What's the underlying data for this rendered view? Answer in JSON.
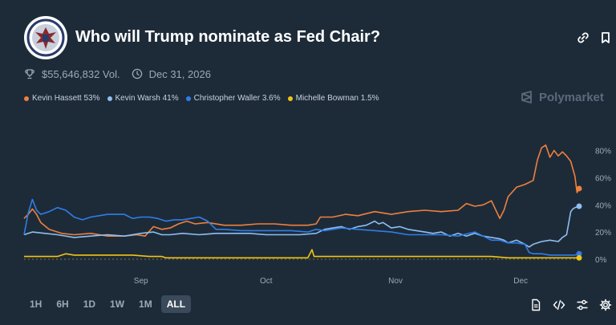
{
  "header": {
    "title": "Who will Trump nominate as Fed Chair?",
    "volume": "$55,646,832 Vol.",
    "end_date": "Dec 31, 2026"
  },
  "brand": {
    "name": "Polymarket"
  },
  "icons": {
    "link": "link-icon",
    "bookmark": "bookmark-icon",
    "trophy": "trophy-icon",
    "clock": "clock-icon",
    "seal": "federal-reserve-seal",
    "brand": "polymarket-logo-icon"
  },
  "legend": [
    {
      "label": "Kevin Hassett 53%",
      "color": "#f0803c"
    },
    {
      "label": "Kevin Warsh 41%",
      "color": "#8fbef0"
    },
    {
      "label": "Christopher Waller 3.6%",
      "color": "#2f7ee8"
    },
    {
      "label": "Michelle Bowman 1.5%",
      "color": "#f2c318"
    }
  ],
  "time_ranges": [
    "1H",
    "6H",
    "1D",
    "1W",
    "1M",
    "ALL"
  ],
  "active_range": "ALL",
  "tools": [
    "document-icon",
    "embed-code-icon",
    "sliders-icon",
    "settings-gear-icon"
  ],
  "chart_data": {
    "type": "line",
    "y_ticks": [
      "0%",
      "20%",
      "40%",
      "60%",
      "80%"
    ],
    "x_ticks": [
      "Sep",
      "Oct",
      "Nov",
      "Dec"
    ],
    "ylim": [
      0,
      88
    ],
    "y_unit": "%",
    "x_unit": "day (0 = Aug 4)",
    "x_tick_positions": [
      28,
      58,
      89,
      119
    ],
    "xlim": [
      0,
      133
    ],
    "grid": false,
    "legend_position": "top-left",
    "series": [
      {
        "name": "Kevin Hassett",
        "color": "#f0803c",
        "points": [
          [
            0,
            30
          ],
          [
            1,
            33
          ],
          [
            2,
            37
          ],
          [
            3,
            33
          ],
          [
            4,
            27
          ],
          [
            6,
            22
          ],
          [
            9,
            19
          ],
          [
            12,
            18
          ],
          [
            16,
            19
          ],
          [
            20,
            17
          ],
          [
            24,
            17
          ],
          [
            27,
            18
          ],
          [
            29,
            17
          ],
          [
            31,
            24
          ],
          [
            33,
            22
          ],
          [
            35,
            23
          ],
          [
            37,
            26
          ],
          [
            39,
            28
          ],
          [
            41,
            26
          ],
          [
            44,
            27
          ],
          [
            48,
            25
          ],
          [
            52,
            25
          ],
          [
            56,
            26
          ],
          [
            60,
            26
          ],
          [
            64,
            25
          ],
          [
            68,
            25
          ],
          [
            70,
            26
          ],
          [
            71,
            31
          ],
          [
            74,
            31
          ],
          [
            77,
            33
          ],
          [
            80,
            32
          ],
          [
            84,
            35
          ],
          [
            88,
            33
          ],
          [
            92,
            35
          ],
          [
            96,
            36
          ],
          [
            100,
            35
          ],
          [
            104,
            36
          ],
          [
            106,
            41
          ],
          [
            108,
            39
          ],
          [
            110,
            40
          ],
          [
            112,
            43
          ],
          [
            114,
            30
          ],
          [
            115,
            36
          ],
          [
            116,
            46
          ],
          [
            118,
            53
          ],
          [
            120,
            55
          ],
          [
            122,
            58
          ],
          [
            123,
            73
          ],
          [
            124,
            82
          ],
          [
            125,
            84
          ],
          [
            126,
            75
          ],
          [
            127,
            80
          ],
          [
            128,
            76
          ],
          [
            129,
            79
          ],
          [
            130,
            76
          ],
          [
            131,
            72
          ],
          [
            132,
            61
          ],
          [
            132.5,
            49
          ],
          [
            133,
            52
          ]
        ]
      },
      {
        "name": "Kevin Warsh",
        "color": "#8fbef0",
        "points": [
          [
            0,
            18
          ],
          [
            2,
            20
          ],
          [
            5,
            19
          ],
          [
            8,
            18
          ],
          [
            12,
            16
          ],
          [
            16,
            17
          ],
          [
            20,
            18
          ],
          [
            24,
            17
          ],
          [
            28,
            19
          ],
          [
            31,
            20
          ],
          [
            33,
            18
          ],
          [
            35,
            18
          ],
          [
            38,
            19
          ],
          [
            42,
            18
          ],
          [
            46,
            19
          ],
          [
            50,
            19
          ],
          [
            54,
            19
          ],
          [
            58,
            18
          ],
          [
            62,
            18
          ],
          [
            66,
            18
          ],
          [
            70,
            19
          ],
          [
            72,
            22
          ],
          [
            74,
            23
          ],
          [
            76,
            24
          ],
          [
            78,
            22
          ],
          [
            80,
            24
          ],
          [
            82,
            25
          ],
          [
            84,
            28
          ],
          [
            85,
            26
          ],
          [
            86,
            27
          ],
          [
            88,
            23
          ],
          [
            90,
            24
          ],
          [
            92,
            22
          ],
          [
            94,
            21
          ],
          [
            96,
            20
          ],
          [
            98,
            19
          ],
          [
            100,
            20
          ],
          [
            102,
            17
          ],
          [
            104,
            19
          ],
          [
            106,
            17
          ],
          [
            108,
            19
          ],
          [
            110,
            17
          ],
          [
            112,
            16
          ],
          [
            114,
            15
          ],
          [
            115,
            14
          ],
          [
            116,
            12
          ],
          [
            118,
            14
          ],
          [
            120,
            11
          ],
          [
            121,
            9
          ],
          [
            122,
            11
          ],
          [
            124,
            13
          ],
          [
            126,
            14
          ],
          [
            128,
            13
          ],
          [
            129,
            16
          ],
          [
            130,
            18
          ],
          [
            131,
            35
          ],
          [
            131.5,
            37
          ],
          [
            132,
            38
          ],
          [
            133,
            39
          ]
        ]
      },
      {
        "name": "Christopher Waller",
        "color": "#2f7ee8",
        "points": [
          [
            0,
            18
          ],
          [
            1,
            34
          ],
          [
            2,
            44
          ],
          [
            3,
            36
          ],
          [
            4,
            33
          ],
          [
            6,
            35
          ],
          [
            8,
            38
          ],
          [
            10,
            36
          ],
          [
            12,
            31
          ],
          [
            14,
            29
          ],
          [
            16,
            31
          ],
          [
            18,
            32
          ],
          [
            20,
            33
          ],
          [
            22,
            33
          ],
          [
            24,
            33
          ],
          [
            26,
            30
          ],
          [
            28,
            31
          ],
          [
            30,
            31
          ],
          [
            32,
            30
          ],
          [
            34,
            28
          ],
          [
            36,
            29
          ],
          [
            38,
            29
          ],
          [
            40,
            30
          ],
          [
            42,
            31
          ],
          [
            44,
            28
          ],
          [
            46,
            22
          ],
          [
            48,
            22
          ],
          [
            52,
            21
          ],
          [
            56,
            21
          ],
          [
            60,
            21
          ],
          [
            64,
            21
          ],
          [
            68,
            20
          ],
          [
            70,
            22
          ],
          [
            72,
            21
          ],
          [
            74,
            22
          ],
          [
            76,
            23
          ],
          [
            80,
            22
          ],
          [
            84,
            21
          ],
          [
            88,
            20
          ],
          [
            92,
            18
          ],
          [
            96,
            18
          ],
          [
            100,
            18
          ],
          [
            104,
            17
          ],
          [
            108,
            20
          ],
          [
            110,
            17
          ],
          [
            112,
            14
          ],
          [
            114,
            14
          ],
          [
            116,
            12
          ],
          [
            118,
            12
          ],
          [
            120,
            11
          ],
          [
            121,
            5
          ],
          [
            122,
            4
          ],
          [
            124,
            4
          ],
          [
            126,
            3
          ],
          [
            128,
            3
          ],
          [
            130,
            3
          ],
          [
            132,
            3
          ],
          [
            133,
            4
          ]
        ]
      },
      {
        "name": "Michelle Bowman",
        "color": "#f2c318",
        "points": [
          [
            0,
            2
          ],
          [
            4,
            2
          ],
          [
            8,
            2
          ],
          [
            10,
            4
          ],
          [
            12,
            3
          ],
          [
            14,
            3
          ],
          [
            18,
            3
          ],
          [
            22,
            3
          ],
          [
            26,
            3
          ],
          [
            30,
            2
          ],
          [
            33,
            2
          ],
          [
            34,
            1
          ],
          [
            38,
            1
          ],
          [
            42,
            1
          ],
          [
            46,
            1
          ],
          [
            50,
            1
          ],
          [
            54,
            1
          ],
          [
            58,
            1
          ],
          [
            62,
            1
          ],
          [
            66,
            1
          ],
          [
            68,
            1
          ],
          [
            69,
            7
          ],
          [
            69.5,
            2
          ],
          [
            72,
            2
          ],
          [
            76,
            2
          ],
          [
            80,
            2
          ],
          [
            84,
            2
          ],
          [
            88,
            2
          ],
          [
            92,
            2
          ],
          [
            96,
            2
          ],
          [
            100,
            2
          ],
          [
            104,
            2
          ],
          [
            108,
            2
          ],
          [
            112,
            2
          ],
          [
            116,
            1
          ],
          [
            120,
            1
          ],
          [
            124,
            1
          ],
          [
            128,
            1
          ],
          [
            130,
            1
          ],
          [
            132,
            1
          ],
          [
            133,
            1
          ]
        ]
      }
    ]
  }
}
